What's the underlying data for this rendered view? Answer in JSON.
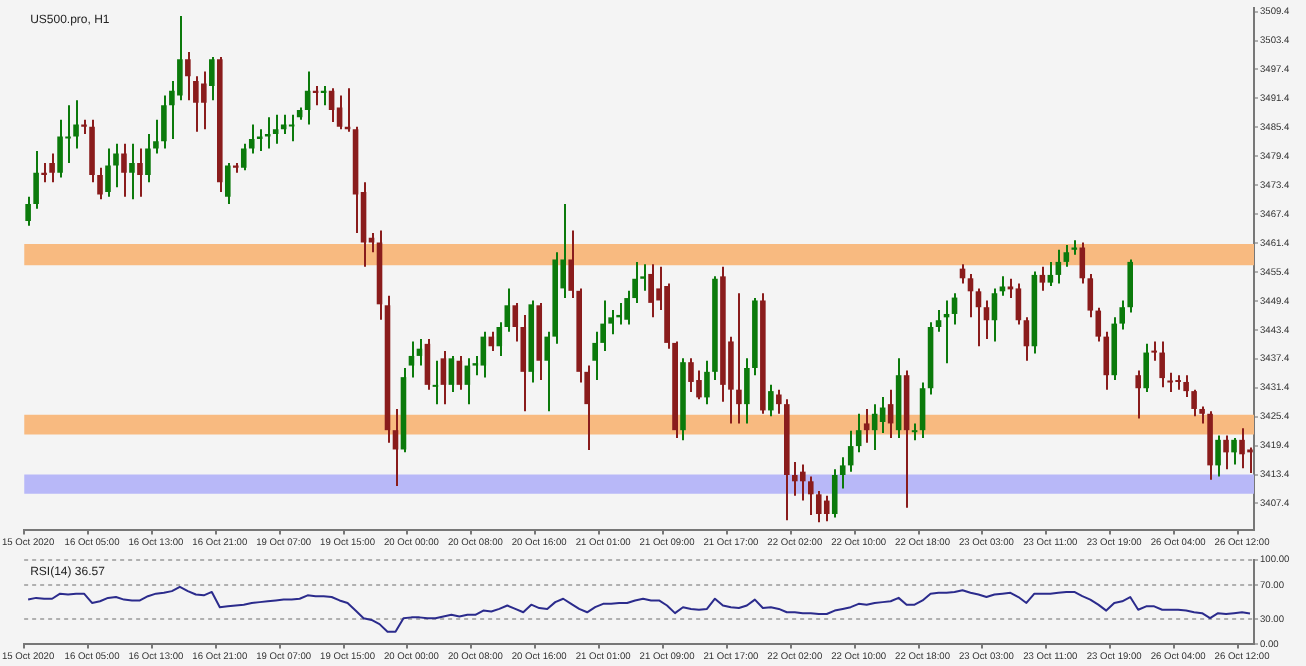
{
  "chart_data": [
    {
      "type": "candlestick",
      "title": "US500.pro, H1",
      "categories": [
        "15 Oct 2020",
        null,
        null,
        null,
        null,
        null,
        null,
        null,
        "16 Oct 05:00",
        null,
        null,
        null,
        null,
        null,
        null,
        null,
        "16 Oct 13:00",
        null,
        null,
        null,
        null,
        null,
        null,
        null,
        "16 Oct 21:00",
        null,
        null,
        null,
        null,
        null,
        null,
        null,
        "19 Oct 07:00",
        null,
        null,
        null,
        null,
        null,
        null,
        null,
        "19 Oct 15:00",
        null,
        null,
        null,
        null,
        null,
        null,
        null,
        "20 Oct 00:00",
        null,
        null,
        null,
        null,
        null,
        null,
        null,
        "20 Oct 08:00",
        null,
        null,
        null,
        null,
        null,
        null,
        null,
        "20 Oct 16:00",
        null,
        null,
        null,
        null,
        null,
        null,
        null,
        "21 Oct 01:00",
        null,
        null,
        null,
        null,
        null,
        null,
        null,
        "21 Oct 09:00",
        null,
        null,
        null,
        null,
        null,
        null,
        null,
        "21 Oct 17:00",
        null,
        null,
        null,
        null,
        null,
        null,
        null,
        "22 Oct 02:00",
        null,
        null,
        null,
        null,
        null,
        null,
        null,
        "22 Oct 10:00",
        null,
        null,
        null,
        null,
        null,
        null,
        null,
        "22 Oct 18:00",
        null,
        null,
        null,
        null,
        null,
        null,
        null,
        "23 Oct 03:00",
        null,
        null,
        null,
        null,
        null,
        null,
        null,
        "23 Oct 11:00",
        null,
        null,
        null,
        null,
        null,
        null,
        null,
        "23 Oct 19:00",
        null,
        null,
        null,
        null,
        null,
        null,
        null,
        "26 Oct 04:00",
        null,
        null,
        null,
        null,
        null,
        null,
        null,
        "26 Oct 12:00",
        null
      ],
      "ohlc": [
        [
          3466,
          3471,
          3465,
          3469.5
        ],
        [
          3469.5,
          3480.5,
          3468.5,
          3476
        ],
        [
          3476,
          3478,
          3474,
          3475.5
        ],
        [
          3478,
          3480,
          3474,
          3476
        ],
        [
          3476,
          3487,
          3475,
          3483.5
        ],
        [
          3483.5,
          3490,
          3478,
          3483.5
        ],
        [
          3483.5,
          3491,
          3481,
          3486
        ],
        [
          3486,
          3487,
          3484,
          3485.5
        ],
        [
          3485.5,
          3487,
          3474,
          3475.5
        ],
        [
          3475.5,
          3477,
          3470.5,
          3471.5
        ],
        [
          3472,
          3481,
          3471,
          3477.5
        ],
        [
          3477.5,
          3482,
          3473,
          3480
        ],
        [
          3480,
          3482,
          3471,
          3476
        ],
        [
          3476,
          3482,
          3470.5,
          3478
        ],
        [
          3478,
          3481,
          3471,
          3475.5
        ],
        [
          3475.5,
          3484,
          3474,
          3481
        ],
        [
          3481,
          3487,
          3480,
          3482.5
        ],
        [
          3482.5,
          3492,
          3481,
          3490
        ],
        [
          3490,
          3495,
          3483,
          3493
        ],
        [
          3492,
          3508.5,
          3491,
          3499.5
        ],
        [
          3499.5,
          3501,
          3491,
          3496
        ],
        [
          3495,
          3496,
          3484.5,
          3490.5
        ],
        [
          3494.5,
          3497,
          3485,
          3490.5
        ],
        [
          3494,
          3500,
          3491,
          3499.5
        ],
        [
          3499.5,
          3500,
          3472,
          3474
        ],
        [
          3471,
          3478,
          3469.5,
          3477.5
        ],
        [
          3477.5,
          3478,
          3476,
          3477
        ],
        [
          3477,
          3482,
          3476.5,
          3481
        ],
        [
          3481,
          3486,
          3480,
          3483
        ],
        [
          3483,
          3485,
          3480.5,
          3483.5
        ],
        [
          3483.5,
          3487.5,
          3481,
          3484
        ],
        [
          3484,
          3488,
          3482,
          3485
        ],
        [
          3485,
          3488,
          3484,
          3486
        ],
        [
          3486,
          3488,
          3482.5,
          3486
        ],
        [
          3487.5,
          3489.5,
          3487,
          3489
        ],
        [
          3489,
          3497,
          3486,
          3493
        ],
        [
          3493,
          3494,
          3490,
          3492.5
        ],
        [
          3492.5,
          3494,
          3490,
          3493
        ],
        [
          3493,
          3493.5,
          3486.5,
          3489
        ],
        [
          3489.5,
          3492,
          3485,
          3485.5
        ],
        [
          3485.5,
          3493.5,
          3484.5,
          3485
        ],
        [
          3485,
          3485.5,
          3463.5,
          3471.5
        ],
        [
          3472,
          3474,
          3456.5,
          3461.5
        ],
        [
          3462.5,
          3463.5,
          3459.5,
          3461.5
        ],
        [
          3461.5,
          3464,
          3445.5,
          3448.7
        ],
        [
          3448.5,
          3450.5,
          3420,
          3422.6
        ],
        [
          3422.6,
          3427,
          3411,
          3418.6
        ],
        [
          3418.6,
          3435.5,
          3418,
          3433.6
        ],
        [
          3436,
          3441,
          3433.5,
          3438
        ],
        [
          3438,
          3441.5,
          3436,
          3439.5
        ],
        [
          3440.5,
          3441.5,
          3431,
          3432
        ],
        [
          3432,
          3437,
          3428,
          3432
        ],
        [
          3437.5,
          3439,
          3428,
          3432
        ],
        [
          3432,
          3438,
          3430.5,
          3437.5
        ],
        [
          3437,
          3438,
          3431,
          3432
        ],
        [
          3432,
          3437.5,
          3428,
          3436
        ],
        [
          3436,
          3438,
          3434,
          3436.5
        ],
        [
          3436,
          3443,
          3433.5,
          3442
        ],
        [
          3442,
          3443,
          3439,
          3440
        ],
        [
          3440,
          3445,
          3438,
          3444
        ],
        [
          3444,
          3452,
          3443,
          3448.5
        ],
        [
          3448.5,
          3449,
          3441,
          3444
        ],
        [
          3444,
          3446.5,
          3426.5,
          3434.7
        ],
        [
          3434.7,
          3449.5,
          3432.5,
          3448.7
        ],
        [
          3448.5,
          3449,
          3433,
          3437
        ],
        [
          3437,
          3443,
          3426.5,
          3442
        ],
        [
          3442,
          3459.5,
          3440.5,
          3458
        ],
        [
          3452,
          3469.5,
          3450,
          3458
        ],
        [
          3458,
          3464,
          3450,
          3451.5
        ],
        [
          3451.5,
          3452,
          3432.5,
          3434.7
        ],
        [
          3434.7,
          3436,
          3418.5,
          3428
        ],
        [
          3437,
          3443,
          3433,
          3440.7
        ],
        [
          3440.7,
          3449.5,
          3439,
          3444.7
        ],
        [
          3444.7,
          3447.5,
          3442.5,
          3446
        ],
        [
          3446,
          3449,
          3444.5,
          3446.5
        ],
        [
          3445.5,
          3451.5,
          3444.5,
          3450
        ],
        [
          3450,
          3457.5,
          3449,
          3454
        ],
        [
          3454,
          3457,
          3451.5,
          3454.5
        ],
        [
          3455,
          3457,
          3446,
          3449
        ],
        [
          3452,
          3456.5,
          3447.5,
          3449.5
        ],
        [
          3452.5,
          3453,
          3439.5,
          3440.7
        ],
        [
          3440.7,
          3441,
          3421,
          3422.6
        ],
        [
          3422.6,
          3437.5,
          3420.5,
          3436.7
        ],
        [
          3436.7,
          3437.5,
          3430.5,
          3432.6
        ],
        [
          3433,
          3435,
          3429,
          3429.4
        ],
        [
          3429.4,
          3437,
          3428,
          3434.7
        ],
        [
          3434.7,
          3454.5,
          3433,
          3454
        ],
        [
          3454.5,
          3456.5,
          3428.5,
          3432
        ],
        [
          3441,
          3442,
          3424,
          3431
        ],
        [
          3431,
          3451,
          3424,
          3428
        ],
        [
          3428,
          3437.5,
          3424,
          3435.5
        ],
        [
          3435.5,
          3450,
          3434,
          3449.5
        ],
        [
          3449.5,
          3451,
          3426,
          3426.7
        ],
        [
          3426.7,
          3432,
          3425.5,
          3430.7
        ],
        [
          3430,
          3431,
          3426,
          3428
        ],
        [
          3428,
          3429,
          3403.9,
          3413.3
        ],
        [
          3413.3,
          3416,
          3409,
          3412
        ],
        [
          3414,
          3415.5,
          3408,
          3412
        ],
        [
          3412,
          3413,
          3405,
          3409.3
        ],
        [
          3409.3,
          3410,
          3403.5,
          3405.2
        ],
        [
          3408,
          3409,
          3403.7,
          3405.2
        ],
        [
          3405.2,
          3414.5,
          3404.5,
          3413.3
        ],
        [
          3413.3,
          3417,
          3410.5,
          3415.3
        ],
        [
          3415.3,
          3422.5,
          3414,
          3419.3
        ],
        [
          3419.3,
          3426,
          3418,
          3422.6
        ],
        [
          3424,
          3427,
          3420,
          3422.6
        ],
        [
          3422.6,
          3428,
          3418.5,
          3426
        ],
        [
          3424.3,
          3429.5,
          3422,
          3427.3
        ],
        [
          3428,
          3431,
          3421,
          3424
        ],
        [
          3422.6,
          3437.5,
          3421,
          3434
        ],
        [
          3434,
          3435,
          3406.5,
          3422.6
        ],
        [
          3422.6,
          3424,
          3420.5,
          3422.6
        ],
        [
          3422.6,
          3432.5,
          3421,
          3431.3
        ],
        [
          3431.3,
          3445,
          3430,
          3444
        ],
        [
          3444,
          3447.5,
          3443,
          3445.4
        ],
        [
          3446,
          3449.5,
          3436.5,
          3446.7
        ],
        [
          3446.7,
          3451,
          3444.5,
          3450.1
        ],
        [
          3456.1,
          3457,
          3453,
          3454.1
        ],
        [
          3454.1,
          3455,
          3446,
          3451.4
        ],
        [
          3451.4,
          3452,
          3440,
          3448.1
        ],
        [
          3448.1,
          3449.5,
          3441.5,
          3445.4
        ],
        [
          3445.4,
          3452,
          3441,
          3451
        ],
        [
          3451.4,
          3454.5,
          3450.5,
          3452.4
        ],
        [
          3452.4,
          3454,
          3450,
          3451.8
        ],
        [
          3452,
          3453,
          3444.5,
          3445.4
        ],
        [
          3445.4,
          3446,
          3437,
          3440
        ],
        [
          3440,
          3455.5,
          3438.5,
          3454.8
        ],
        [
          3454.8,
          3456.5,
          3451.5,
          3453.2
        ],
        [
          3453.2,
          3457.5,
          3452.5,
          3454.8
        ],
        [
          3454.8,
          3460,
          3453,
          3457.5
        ],
        [
          3457.5,
          3461,
          3456.5,
          3459.5
        ],
        [
          3460,
          3462,
          3459,
          3460.5
        ],
        [
          3460.5,
          3461.5,
          3453,
          3454.1
        ],
        [
          3454.1,
          3455,
          3446,
          3447.4
        ],
        [
          3447.4,
          3448,
          3441,
          3442
        ],
        [
          3442,
          3443,
          3431,
          3434
        ],
        [
          3434,
          3446,
          3433,
          3444.7
        ],
        [
          3444.7,
          3449.5,
          3443.5,
          3448.1
        ],
        [
          3448.1,
          3458,
          3447,
          3457.5
        ],
        [
          3434,
          3435,
          3425,
          3431.3
        ],
        [
          3431.3,
          3440.5,
          3430.5,
          3438.7
        ],
        [
          3439.1,
          3441,
          3437,
          3438.7
        ],
        [
          3438.7,
          3441,
          3431.5,
          3433.4
        ],
        [
          3432.9,
          3434.5,
          3430.5,
          3432.6
        ],
        [
          3433,
          3434,
          3431,
          3432.6
        ],
        [
          3432.6,
          3434,
          3429.5,
          3430.7
        ],
        [
          3430.7,
          3431,
          3425.5,
          3427
        ],
        [
          3427,
          3427.5,
          3424,
          3426
        ],
        [
          3426,
          3426.5,
          3412.3,
          3415.3
        ],
        [
          3415.3,
          3421.5,
          3413,
          3420.6
        ],
        [
          3420.6,
          3421.5,
          3414.5,
          3418
        ],
        [
          3418,
          3421,
          3415.5,
          3420.6
        ],
        [
          3420.6,
          3423,
          3414.7,
          3417.6
        ],
        [
          3418.6,
          3419,
          3413.7,
          3418
        ]
      ],
      "ylim": [
        3401.8,
        3510.2
      ],
      "yticks": [
        3407.4,
        3413.4,
        3419.4,
        3425.4,
        3431.4,
        3437.4,
        3443.4,
        3449.4,
        3455.4,
        3461.4,
        3467.4,
        3473.4,
        3479.4,
        3485.4,
        3491.4,
        3497.4,
        3503.4,
        3509.4
      ],
      "bands": [
        {
          "axis": "y",
          "from": 3456.8,
          "to": 3461.2,
          "color": "#f8ba80"
        },
        {
          "axis": "y",
          "from": 3421.7,
          "to": 3425.8,
          "color": "#f8ba80"
        },
        {
          "axis": "y",
          "from": 3409.4,
          "to": 3413.4,
          "color": "#b8b8f8"
        }
      ]
    },
    {
      "type": "line",
      "title": "RSI(14) 36.57",
      "categories": [
        "15 Oct 2020",
        null,
        null,
        null,
        null,
        null,
        null,
        null,
        "16 Oct 05:00",
        null,
        null,
        null,
        null,
        null,
        null,
        null,
        "16 Oct 13:00",
        null,
        null,
        null,
        null,
        null,
        null,
        null,
        "16 Oct 21:00",
        null,
        null,
        null,
        null,
        null,
        null,
        null,
        "19 Oct 07:00",
        null,
        null,
        null,
        null,
        null,
        null,
        null,
        "19 Oct 15:00",
        null,
        null,
        null,
        null,
        null,
        null,
        null,
        "20 Oct 00:00",
        null,
        null,
        null,
        null,
        null,
        null,
        null,
        "20 Oct 08:00",
        null,
        null,
        null,
        null,
        null,
        null,
        null,
        "20 Oct 16:00",
        null,
        null,
        null,
        null,
        null,
        null,
        null,
        "21 Oct 01:00",
        null,
        null,
        null,
        null,
        null,
        null,
        null,
        "21 Oct 09:00",
        null,
        null,
        null,
        null,
        null,
        null,
        null,
        "21 Oct 17:00",
        null,
        null,
        null,
        null,
        null,
        null,
        null,
        "22 Oct 02:00",
        null,
        null,
        null,
        null,
        null,
        null,
        null,
        "22 Oct 10:00",
        null,
        null,
        null,
        null,
        null,
        null,
        null,
        "22 Oct 18:00",
        null,
        null,
        null,
        null,
        null,
        null,
        null,
        "23 Oct 03:00",
        null,
        null,
        null,
        null,
        null,
        null,
        null,
        "23 Oct 11:00",
        null,
        null,
        null,
        null,
        null,
        null,
        null,
        "23 Oct 19:00",
        null,
        null,
        null,
        null,
        null,
        null,
        null,
        "26 Oct 04:00",
        null,
        null,
        null,
        null,
        null,
        null,
        null,
        "26 Oct 12:00",
        null
      ],
      "series": [
        {
          "color": "#2b2b8c",
          "values": [
            53,
            55,
            54,
            54,
            60,
            59,
            60,
            60,
            49,
            51,
            55,
            56,
            53,
            52,
            52,
            57,
            60,
            61,
            63,
            68,
            63,
            59,
            58,
            62,
            44,
            45,
            46,
            47,
            49,
            50,
            51,
            52,
            53,
            53,
            54,
            58,
            57,
            57,
            56,
            52,
            49,
            40,
            31,
            29,
            24,
            15,
            15,
            31,
            32,
            32,
            31,
            31,
            33,
            35,
            33,
            35,
            35,
            40,
            39,
            42,
            46,
            42,
            38,
            47,
            43,
            42,
            50,
            54,
            48,
            42,
            38,
            44,
            48,
            48,
            49,
            49,
            52,
            54,
            52,
            52,
            46,
            37,
            44,
            42,
            41,
            42,
            54,
            46,
            44,
            43,
            46,
            53,
            43,
            44,
            42,
            38,
            38,
            37,
            37,
            36,
            36,
            40,
            42,
            44,
            48,
            47,
            49,
            50,
            51,
            55,
            47,
            47,
            52,
            60,
            61,
            61,
            62,
            64,
            61,
            59,
            56,
            59,
            60,
            61,
            56,
            49,
            60,
            60,
            60,
            61,
            62,
            62,
            57,
            53,
            47,
            40,
            49,
            51,
            56,
            41,
            45,
            45,
            41,
            41,
            41,
            40,
            38,
            37,
            31,
            37,
            36,
            37,
            38,
            36.57
          ]
        }
      ],
      "ylim": [
        0,
        100
      ],
      "yticks": [
        {
          "value": 0,
          "label": "0.00"
        },
        {
          "value": 30,
          "label": "30.00"
        },
        {
          "value": 70,
          "label": "70.00"
        },
        {
          "value": 100,
          "label": "100.00"
        }
      ],
      "grid": "y",
      "marker": "none",
      "line_style": "solid"
    }
  ]
}
